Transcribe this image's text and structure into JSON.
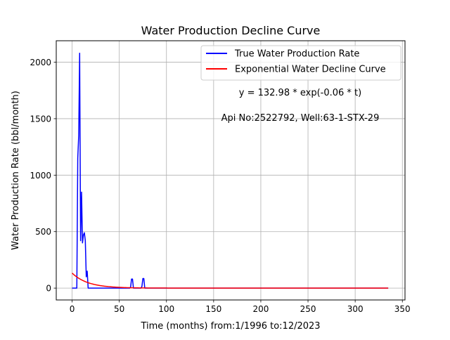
{
  "chart_data": {
    "type": "line",
    "title": "Water Production Decline Curve",
    "xlabel": "Time (months) from:1/1996 to:12/2023",
    "ylabel": "Water Production Rate (bbl/month)",
    "xlim": [
      -16.8,
      352.8
    ],
    "ylim": [
      -105,
      2190
    ],
    "xticks": [
      0,
      50,
      100,
      150,
      200,
      250,
      300,
      350
    ],
    "yticks": [
      0,
      500,
      1000,
      1500,
      2000
    ],
    "grid": true,
    "legend_position": "top-right",
    "annotations": [
      "y = 132.98 * exp(-0.06 * t)",
      "Api No:2522792, Well:63-1-STX-29"
    ],
    "series": [
      {
        "name": "True Water Production Rate",
        "color": "#0000ff",
        "x": [
          0,
          1,
          2,
          3,
          4,
          5,
          6,
          7,
          8,
          9,
          10,
          11,
          12,
          13,
          14,
          15,
          16,
          17,
          18,
          19,
          20,
          30,
          40,
          50,
          60,
          61,
          62,
          63,
          64,
          65,
          70,
          72,
          73,
          74,
          75,
          76,
          77,
          78,
          100,
          150,
          200,
          250,
          300,
          335
        ],
        "y": [
          0,
          0,
          0,
          0,
          0,
          0,
          1150,
          1350,
          2080,
          420,
          850,
          400,
          470,
          490,
          420,
          100,
          150,
          0,
          0,
          0,
          0,
          0,
          0,
          0,
          0,
          0,
          10,
          80,
          80,
          0,
          0,
          0,
          0,
          15,
          85,
          85,
          0,
          0,
          0,
          0,
          0,
          0,
          0,
          0
        ]
      },
      {
        "name": "Exponential Water Decline Curve",
        "color": "#ff0000",
        "equation": {
          "a": 132.98,
          "b": 0.06,
          "t_start": 0,
          "t_end": 335
        }
      }
    ]
  }
}
